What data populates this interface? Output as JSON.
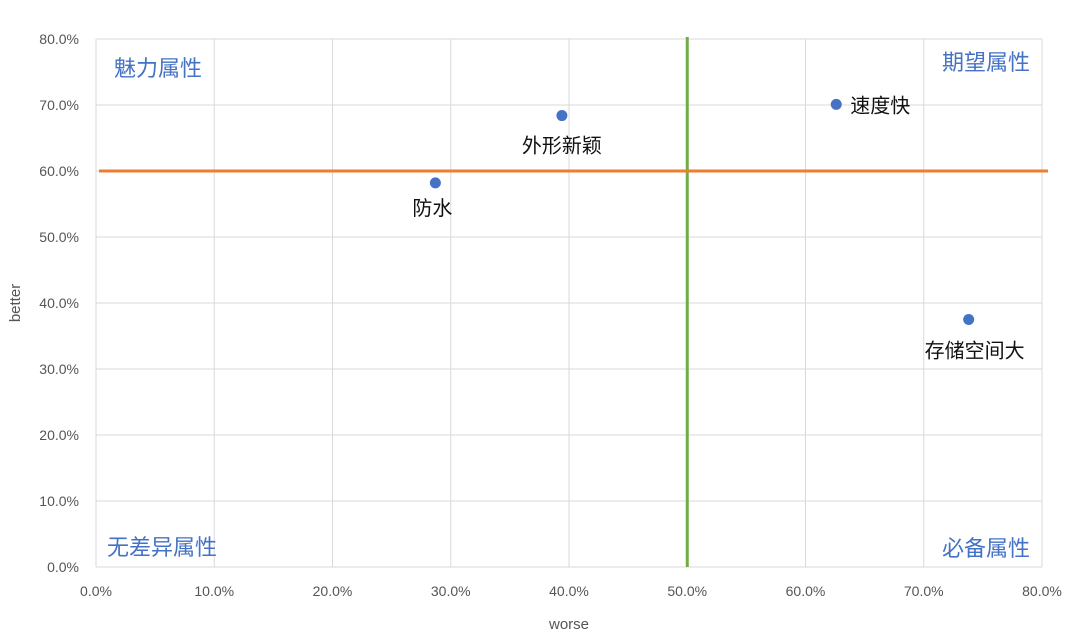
{
  "chart_data": {
    "type": "scatter",
    "xlabel": "worse",
    "ylabel": "better",
    "xlim": [
      0,
      0.8
    ],
    "ylim": [
      0,
      0.8
    ],
    "x_ticks": [
      "0.0%",
      "10.0%",
      "20.0%",
      "30.0%",
      "40.0%",
      "50.0%",
      "60.0%",
      "70.0%",
      "80.0%"
    ],
    "y_ticks": [
      "0.0%",
      "10.0%",
      "20.0%",
      "30.0%",
      "40.0%",
      "50.0%",
      "60.0%",
      "70.0%",
      "80.0%"
    ],
    "grid": true,
    "reference_lines": [
      {
        "axis": "x",
        "value": 0.5,
        "color": "#70ad47"
      },
      {
        "axis": "y",
        "value": 0.6,
        "color": "#ed7d31"
      }
    ],
    "points": [
      {
        "label": "外形新颖",
        "x": 0.394,
        "y": 0.684
      },
      {
        "label": "速度快",
        "x": 0.626,
        "y": 0.701
      },
      {
        "label": "防水",
        "x": 0.287,
        "y": 0.582
      },
      {
        "label": "存储空间大",
        "x": 0.738,
        "y": 0.375
      }
    ],
    "point_color": "#4472c4",
    "quadrant_labels": {
      "top_left": "魅力属性",
      "top_right": "期望属性",
      "bottom_left": "无差异属性",
      "bottom_right": "必备属性"
    }
  }
}
